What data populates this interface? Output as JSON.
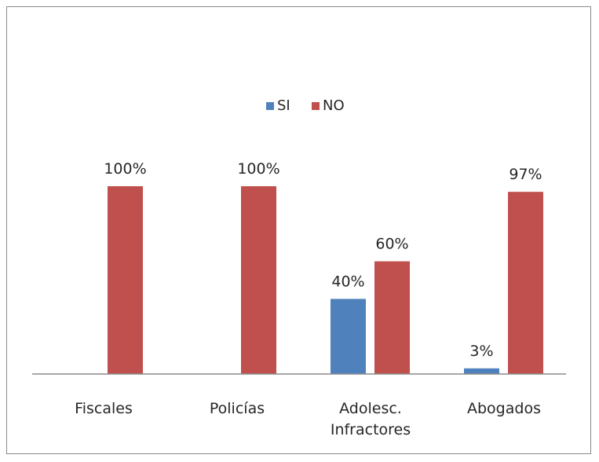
{
  "chart_data": {
    "type": "bar",
    "categories": [
      [
        "Fiscales"
      ],
      [
        "Policías"
      ],
      [
        "Adolesc.",
        "Infractores"
      ],
      [
        "Abogados"
      ]
    ],
    "series": [
      {
        "name": "SI",
        "color": "#4f81bd",
        "values": [
          null,
          null,
          40,
          3
        ],
        "labels": [
          "",
          "",
          "40%",
          "3%"
        ]
      },
      {
        "name": "NO",
        "color": "#c0504d",
        "values": [
          100,
          100,
          60,
          97
        ],
        "labels": [
          "100%",
          "100%",
          "60%",
          "97%"
        ]
      }
    ],
    "ylim": [
      0,
      100
    ],
    "legend": "top-center",
    "grid": false
  }
}
